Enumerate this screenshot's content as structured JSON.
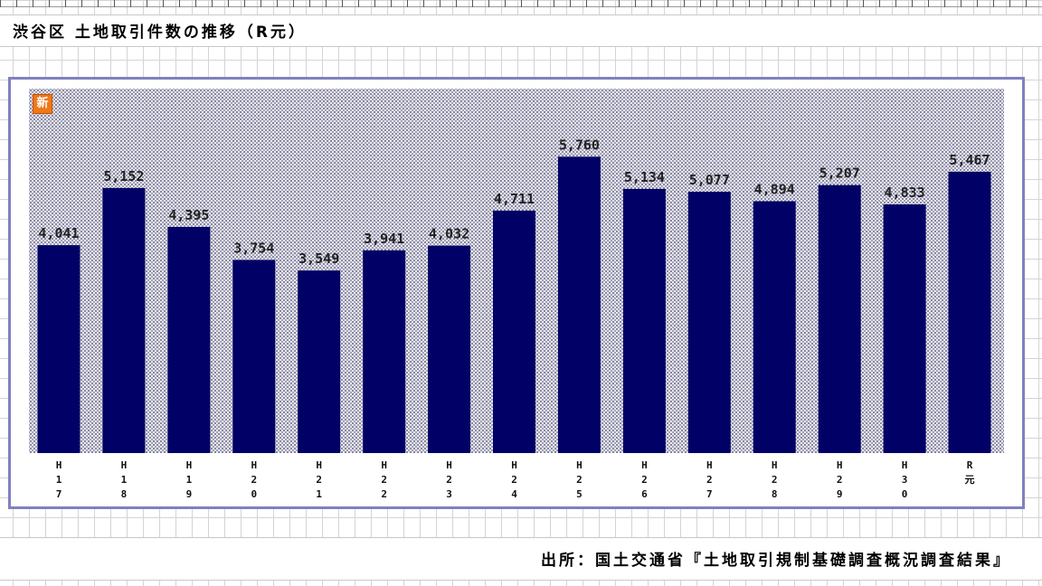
{
  "title": "渋谷区 土地取引件数の推移（R元）",
  "source": "出所：国土交通省『土地取引規制基礎調査概況調査結果』",
  "badge": "新",
  "colors": {
    "bar": "#000066",
    "frame": "#8080c0",
    "badge": "#f07818"
  },
  "chart_data": {
    "type": "bar",
    "title": "渋谷区 土地取引件数の推移（R元）",
    "categories": [
      "H17",
      "H18",
      "H19",
      "H20",
      "H21",
      "H22",
      "H23",
      "H24",
      "H25",
      "H26",
      "H27",
      "H28",
      "H29",
      "H30",
      "R元"
    ],
    "values": [
      4041,
      5152,
      4395,
      3754,
      3549,
      3941,
      4032,
      4711,
      5760,
      5134,
      5077,
      4894,
      5207,
      4833,
      5467
    ],
    "value_labels": [
      "4,041",
      "5,152",
      "4,395",
      "3,754",
      "3,549",
      "3,941",
      "4,032",
      "4,711",
      "5,760",
      "5,134",
      "5,077",
      "4,894",
      "5,207",
      "4,833",
      "5,467"
    ],
    "tick_lines": [
      [
        "H",
        "1",
        "7"
      ],
      [
        "H",
        "1",
        "8"
      ],
      [
        "H",
        "1",
        "9"
      ],
      [
        "H",
        "2",
        "0"
      ],
      [
        "H",
        "2",
        "1"
      ],
      [
        "H",
        "2",
        "2"
      ],
      [
        "H",
        "2",
        "3"
      ],
      [
        "H",
        "2",
        "4"
      ],
      [
        "H",
        "2",
        "5"
      ],
      [
        "H",
        "2",
        "6"
      ],
      [
        "H",
        "2",
        "7"
      ],
      [
        "H",
        "2",
        "8"
      ],
      [
        "H",
        "2",
        "9"
      ],
      [
        "H",
        "3",
        "0"
      ],
      [
        "R",
        "元"
      ]
    ],
    "xlabel": "",
    "ylabel": "",
    "ylim": [
      0,
      6500
    ],
    "grid": false,
    "legend": "none"
  }
}
